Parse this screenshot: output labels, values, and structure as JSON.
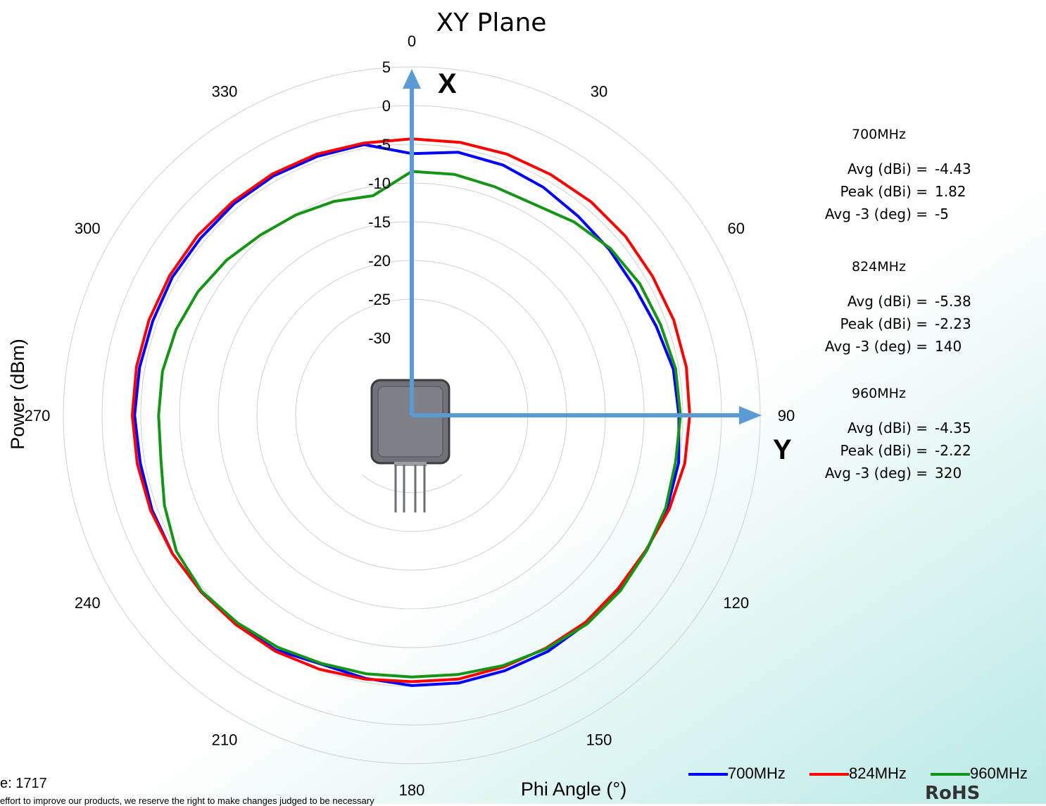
{
  "chart_data": {
    "type": "polar-line",
    "title": "XY Plane",
    "xlabel": "Phi  Angle (°)",
    "ylabel": "Power (dBm)",
    "theta_ticks": [
      "0",
      "30",
      "60",
      "90",
      "120",
      "150",
      "180",
      "210",
      "240",
      "270",
      "300",
      "330"
    ],
    "radial_ticks": [
      "5",
      "0",
      "-5",
      "-10",
      "-15",
      "-20",
      "-25",
      "-30"
    ],
    "rlim": [
      -40,
      5
    ],
    "theta_direction": "clockwise",
    "theta_zero": "top",
    "grid": true,
    "legend_position": "bottom-right",
    "series": [
      {
        "name": "700MHz",
        "color": "#0000ff",
        "theta": [
          0,
          10,
          20,
          30,
          40,
          50,
          60,
          70,
          80,
          90,
          100,
          110,
          120,
          130,
          140,
          150,
          160,
          170,
          180,
          190,
          200,
          210,
          220,
          230,
          240,
          250,
          260,
          270,
          280,
          290,
          300,
          310,
          320,
          330,
          340,
          350
        ],
        "values": [
          -6.2,
          -5.5,
          -5.6,
          -6.0,
          -6.5,
          -6.7,
          -6.8,
          -6.4,
          -5.7,
          -5.5,
          -5.0,
          -4.9,
          -5.0,
          -4.9,
          -4.9,
          -4.8,
          -4.9,
          -4.9,
          -5.1,
          -5.5,
          -5.8,
          -5.0,
          -4.7,
          -4.5,
          -4.3,
          -4.3,
          -4.4,
          -4.2,
          -4.3,
          -4.4,
          -4.3,
          -4.4,
          -4.3,
          -4.3,
          -4.4,
          -4.5
        ]
      },
      {
        "name": "824MHz",
        "color": "#ff0000",
        "theta": [
          0,
          10,
          20,
          30,
          40,
          50,
          60,
          70,
          80,
          90,
          100,
          110,
          120,
          130,
          140,
          150,
          160,
          170,
          180,
          190,
          200,
          210,
          220,
          230,
          240,
          250,
          260,
          270,
          280,
          290,
          300,
          310,
          320,
          330,
          340,
          350
        ],
        "values": [
          -4.3,
          -4.2,
          -4.1,
          -4.1,
          -4.0,
          -4.0,
          -4.1,
          -4.0,
          -4.0,
          -4.1,
          -4.2,
          -4.6,
          -5.1,
          -5.2,
          -5.1,
          -5.3,
          -5.4,
          -5.4,
          -5.6,
          -5.4,
          -5.1,
          -4.8,
          -4.7,
          -4.5,
          -4.3,
          -4.1,
          -4.0,
          -3.9,
          -3.9,
          -3.9,
          -3.9,
          -3.9,
          -4.0,
          -4.0,
          -4.1,
          -4.3
        ]
      },
      {
        "name": "960MHz",
        "color": "#159515",
        "theta": [
          0,
          10,
          20,
          30,
          40,
          50,
          60,
          70,
          80,
          90,
          100,
          110,
          120,
          130,
          140,
          150,
          160,
          170,
          180,
          190,
          200,
          210,
          220,
          230,
          240,
          250,
          260,
          270,
          280,
          290,
          300,
          310,
          320,
          330,
          340,
          350
        ],
        "values": [
          -8.5,
          -8.4,
          -8.6,
          -8.5,
          -7.4,
          -6.5,
          -6.0,
          -5.8,
          -5.4,
          -5.3,
          -5.4,
          -5.1,
          -5.0,
          -4.8,
          -4.8,
          -5.2,
          -5.6,
          -6.0,
          -6.2,
          -6.1,
          -5.9,
          -5.4,
          -5.0,
          -4.6,
          -4.9,
          -6.0,
          -7.1,
          -7.3,
          -7.3,
          -7.6,
          -8.1,
          -8.8,
          -9.6,
          -10.1,
          -10.6,
          -11.2
        ]
      }
    ]
  },
  "axes_overlay": {
    "x_label": "X",
    "y_label": "Y",
    "arrow_color": "#5b9bd5"
  },
  "stats": [
    {
      "freq": "700MHz",
      "avg_label": "Avg (dBi) =",
      "avg": "-4.43",
      "peak_label": "Peak (dBi) =",
      "peak": "1.82",
      "avg3_label": "Avg -3 (deg) =",
      "avg3": "-5"
    },
    {
      "freq": "824MHz",
      "avg_label": "Avg (dBi) =",
      "avg": "-5.38",
      "peak_label": "Peak (dBi) =",
      "peak": "-2.23",
      "avg3_label": "Avg -3 (deg) =",
      "avg3": "140"
    },
    {
      "freq": "960MHz",
      "avg_label": "Avg (dBi) =",
      "avg": "-4.35",
      "peak_label": "Peak (dBi) =",
      "peak": "-2.22",
      "avg3_label": "Avg -3 (deg) =",
      "avg3": "320"
    }
  ],
  "legend": [
    {
      "name": "700MHz",
      "color": "#0000ff"
    },
    {
      "name": "824MHz",
      "color": "#ff0000"
    },
    {
      "name": "960MHz",
      "color": "#159515"
    }
  ],
  "footer": {
    "line1": "e: 1717",
    "line2": "effort to improve our products, we reserve the right to make changes judged to be necessary"
  },
  "rohs": "RoHS"
}
